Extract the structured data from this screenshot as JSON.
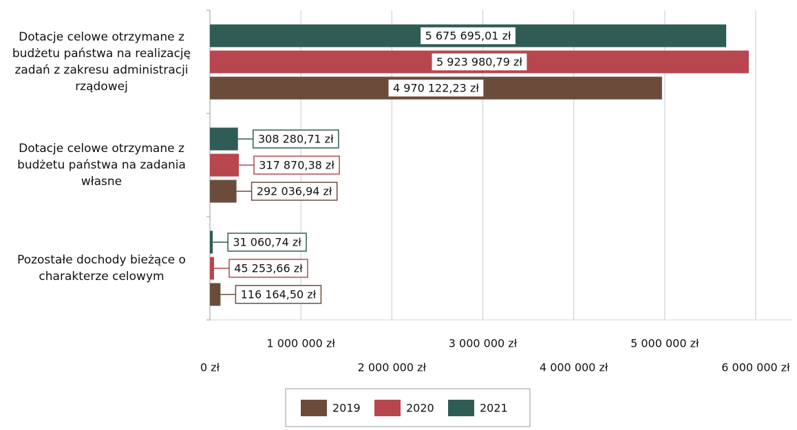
{
  "chart_data": {
    "type": "barh",
    "categories": [
      "Dotacje celowe otrzymane z budżetu państwa na realizację zadań z zakresu administracji rządowej",
      "Dotacje celowe otrzymane z budżetu państwa na zadania własne",
      "Pozostałe dochody bieżące o charakterze celowym"
    ],
    "series": [
      {
        "name": "2019",
        "color": "#6b4c3b",
        "label_color": "#111111",
        "values": [
          4970122.23,
          292036.94,
          116164.5
        ],
        "value_labels": [
          "4 970 122,23 zł",
          "292 036,94 zł",
          "116 164,50 zł"
        ]
      },
      {
        "name": "2020",
        "color": "#b8464f",
        "label_color": "#a8434b",
        "values": [
          5923980.79,
          317870.38,
          45253.66
        ],
        "value_labels": [
          "5 923 980,79 zł",
          "317 870,38 zł",
          "45 253,66 zł"
        ]
      },
      {
        "name": "2021",
        "color": "#2f5c55",
        "label_color": "#111111",
        "values": [
          5675695.01,
          308280.71,
          31060.74
        ],
        "value_labels": [
          "5 675 695,01 zł",
          "308 280,71 zł",
          "31 060,74 zł"
        ]
      }
    ],
    "xlim": [
      0,
      6400000
    ],
    "xticks": [
      {
        "value": 0,
        "label": "0 zł"
      },
      {
        "value": 1000000,
        "label": "1 000 000 zł"
      },
      {
        "value": 2000000,
        "label": "2 000 000 zł"
      },
      {
        "value": 3000000,
        "label": "3 000 000 zł"
      },
      {
        "value": 4000000,
        "label": "4 000 000 zł"
      },
      {
        "value": 5000000,
        "label": "5 000 000 zł"
      },
      {
        "value": 6000000,
        "label": "6 000 000 zł"
      }
    ],
    "grid": true
  }
}
